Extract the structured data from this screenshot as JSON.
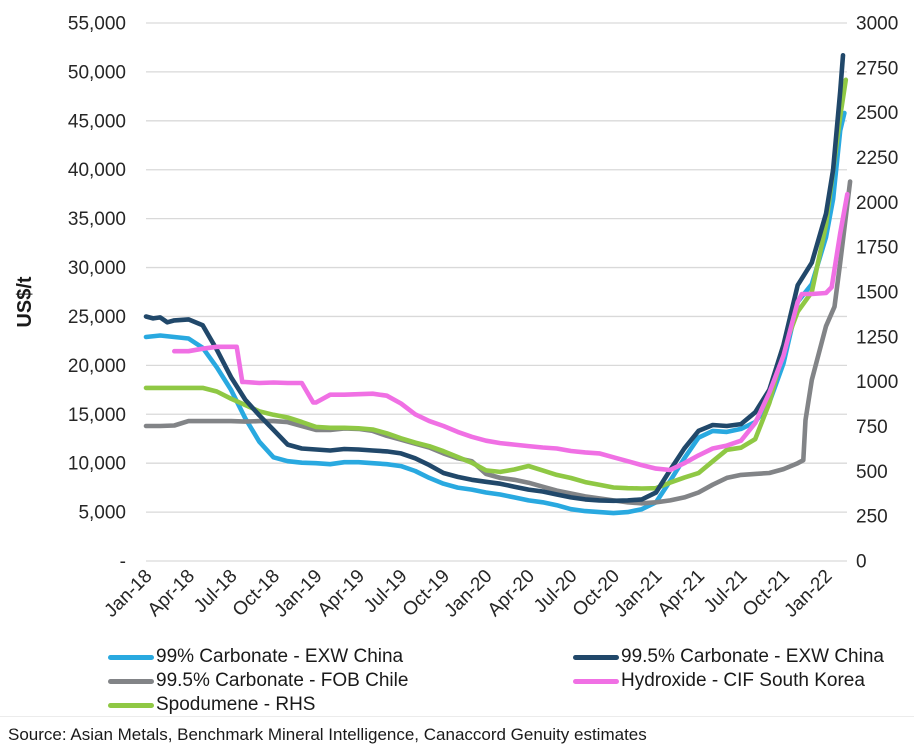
{
  "axis_left": {
    "title": "US$/t",
    "max": 55000,
    "ticks": [
      "55,000",
      "50,000",
      "45,000",
      "40,000",
      "35,000",
      "30,000",
      "25,000",
      "20,000",
      "15,000",
      "10,000",
      "5,000",
      "-"
    ]
  },
  "axis_right": {
    "max": 3000,
    "ticks": [
      "3000",
      "2750",
      "2500",
      "2250",
      "2000",
      "1750",
      "1500",
      "1250",
      "1000",
      "750",
      "500",
      "250",
      "0"
    ]
  },
  "x_axis": {
    "labels": [
      "Jan-18",
      "Apr-18",
      "Jul-18",
      "Oct-18",
      "Jan-19",
      "Apr-19",
      "Jul-19",
      "Oct-19",
      "Jan-20",
      "Apr-20",
      "Jul-20",
      "Oct-20",
      "Jan-21",
      "Apr-21",
      "Jul-21",
      "Oct-21",
      "Jan-22"
    ],
    "months_per_label": 3
  },
  "colors": {
    "carbonate99_exw_china": "#29A9E0",
    "carbonate995_exw_china": "#21486A",
    "carbonate995_fob_chile": "#828487",
    "hydroxide_cif_south_korea": "#F070E4",
    "spodumene_rhs": "#8FC844",
    "gridline": "#d9d9d9"
  },
  "chart_data": {
    "type": "line",
    "x_unit": "months since Jan-2018",
    "left_axis_range": [
      0,
      55000
    ],
    "right_axis_range": [
      0,
      3000
    ],
    "grid": "horizontal",
    "legend_position": "bottom",
    "series": [
      {
        "name": "99% Carbonate - EXW China",
        "axis": "left",
        "color": "#29A9E0",
        "points": [
          [
            0,
            22900
          ],
          [
            1,
            23050
          ],
          [
            2,
            22900
          ],
          [
            3,
            22750
          ],
          [
            4,
            21800
          ],
          [
            5,
            19800
          ],
          [
            6,
            17500
          ],
          [
            7,
            14600
          ],
          [
            8,
            12200
          ],
          [
            9,
            10600
          ],
          [
            10,
            10200
          ],
          [
            11,
            10050
          ],
          [
            12,
            10000
          ],
          [
            13,
            9900
          ],
          [
            14,
            10100
          ],
          [
            15,
            10100
          ],
          [
            16,
            10000
          ],
          [
            17,
            9900
          ],
          [
            18,
            9700
          ],
          [
            19,
            9200
          ],
          [
            20,
            8500
          ],
          [
            21,
            7900
          ],
          [
            22,
            7500
          ],
          [
            23,
            7300
          ],
          [
            24,
            7000
          ],
          [
            25,
            6800
          ],
          [
            26,
            6500
          ],
          [
            27,
            6200
          ],
          [
            28,
            6000
          ],
          [
            29,
            5700
          ],
          [
            30,
            5300
          ],
          [
            31,
            5100
          ],
          [
            32,
            5000
          ],
          [
            33,
            4900
          ],
          [
            34,
            5000
          ],
          [
            35,
            5300
          ],
          [
            36,
            6000
          ],
          [
            37,
            8200
          ],
          [
            38,
            10500
          ],
          [
            39,
            12600
          ],
          [
            40,
            13300
          ],
          [
            41,
            13200
          ],
          [
            42,
            13500
          ],
          [
            43,
            14200
          ],
          [
            44,
            16200
          ],
          [
            45,
            20200
          ],
          [
            46,
            26500
          ],
          [
            47,
            28300
          ],
          [
            48,
            33100
          ],
          [
            48.5,
            37000
          ],
          [
            49,
            44000
          ],
          [
            49.3,
            45800
          ]
        ]
      },
      {
        "name": "99.5% Carbonate - FOB Chile",
        "axis": "left",
        "color": "#828487",
        "points": [
          [
            0,
            13800
          ],
          [
            1,
            13800
          ],
          [
            2,
            13850
          ],
          [
            3,
            14300
          ],
          [
            4,
            14300
          ],
          [
            5,
            14300
          ],
          [
            6,
            14300
          ],
          [
            7,
            14250
          ],
          [
            8,
            14300
          ],
          [
            9,
            14300
          ],
          [
            10,
            14200
          ],
          [
            11,
            13800
          ],
          [
            12,
            13400
          ],
          [
            13,
            13400
          ],
          [
            14,
            13550
          ],
          [
            15,
            13500
          ],
          [
            16,
            13300
          ],
          [
            17,
            12800
          ],
          [
            18,
            12400
          ],
          [
            19,
            12000
          ],
          [
            20,
            11600
          ],
          [
            21,
            11000
          ],
          [
            22,
            10500
          ],
          [
            23,
            10200
          ],
          [
            24,
            8900
          ],
          [
            25,
            8500
          ],
          [
            26,
            8300
          ],
          [
            27,
            8000
          ],
          [
            28,
            7600
          ],
          [
            29,
            7200
          ],
          [
            30,
            6900
          ],
          [
            31,
            6600
          ],
          [
            32,
            6400
          ],
          [
            33,
            6200
          ],
          [
            34,
            6000
          ],
          [
            35,
            5900
          ],
          [
            36,
            6000
          ],
          [
            37,
            6200
          ],
          [
            38,
            6500
          ],
          [
            39,
            7000
          ],
          [
            40,
            7800
          ],
          [
            41,
            8500
          ],
          [
            42,
            8800
          ],
          [
            43,
            8900
          ],
          [
            44,
            9000
          ],
          [
            45,
            9400
          ],
          [
            46,
            10000
          ],
          [
            46.4,
            10300
          ],
          [
            46.55,
            14400
          ],
          [
            47,
            18500
          ],
          [
            48,
            24000
          ],
          [
            48.6,
            26000
          ],
          [
            49,
            30500
          ],
          [
            49.7,
            38800
          ]
        ]
      },
      {
        "name": "Spodumene - RHS",
        "axis": "right",
        "color": "#8FC844",
        "points": [
          [
            0,
            965
          ],
          [
            1,
            965
          ],
          [
            2,
            965
          ],
          [
            3,
            965
          ],
          [
            4,
            965
          ],
          [
            5,
            945
          ],
          [
            6,
            905
          ],
          [
            7,
            870
          ],
          [
            8,
            835
          ],
          [
            9,
            815
          ],
          [
            10,
            800
          ],
          [
            11,
            775
          ],
          [
            12,
            748
          ],
          [
            13,
            743
          ],
          [
            14,
            743
          ],
          [
            15,
            740
          ],
          [
            16,
            733
          ],
          [
            17,
            712
          ],
          [
            18,
            684
          ],
          [
            19,
            660
          ],
          [
            20,
            640
          ],
          [
            21,
            612
          ],
          [
            22,
            580
          ],
          [
            23,
            548
          ],
          [
            24,
            505
          ],
          [
            25,
            497
          ],
          [
            26,
            510
          ],
          [
            27,
            530
          ],
          [
            28,
            505
          ],
          [
            29,
            480
          ],
          [
            30,
            463
          ],
          [
            31,
            440
          ],
          [
            32,
            425
          ],
          [
            33,
            410
          ],
          [
            34,
            406
          ],
          [
            35,
            404
          ],
          [
            36,
            406
          ],
          [
            37,
            437
          ],
          [
            38,
            465
          ],
          [
            39,
            490
          ],
          [
            40,
            556
          ],
          [
            41,
            620
          ],
          [
            42,
            632
          ],
          [
            43,
            680
          ],
          [
            44,
            880
          ],
          [
            45,
            1180
          ],
          [
            46,
            1390
          ],
          [
            47,
            1500
          ],
          [
            48,
            1875
          ],
          [
            49,
            2480
          ],
          [
            49.4,
            2683
          ]
        ]
      },
      {
        "name": "99.5% Carbonate - EXW China",
        "axis": "left",
        "color": "#21486A",
        "points": [
          [
            0,
            25000
          ],
          [
            0.5,
            24800
          ],
          [
            1,
            24900
          ],
          [
            1.5,
            24400
          ],
          [
            2,
            24600
          ],
          [
            3,
            24700
          ],
          [
            4,
            24100
          ],
          [
            5,
            21600
          ],
          [
            6,
            18800
          ],
          [
            7,
            16500
          ],
          [
            8,
            14900
          ],
          [
            9,
            13400
          ],
          [
            10,
            11900
          ],
          [
            11,
            11500
          ],
          [
            12,
            11400
          ],
          [
            13,
            11300
          ],
          [
            14,
            11450
          ],
          [
            15,
            11400
          ],
          [
            16,
            11300
          ],
          [
            17,
            11200
          ],
          [
            18,
            11000
          ],
          [
            19,
            10500
          ],
          [
            20,
            9800
          ],
          [
            21,
            9000
          ],
          [
            22,
            8600
          ],
          [
            23,
            8300
          ],
          [
            24,
            8100
          ],
          [
            25,
            7900
          ],
          [
            26,
            7600
          ],
          [
            27,
            7300
          ],
          [
            28,
            7100
          ],
          [
            29,
            6800
          ],
          [
            30,
            6500
          ],
          [
            31,
            6300
          ],
          [
            32,
            6200
          ],
          [
            33,
            6150
          ],
          [
            34,
            6200
          ],
          [
            35,
            6300
          ],
          [
            36,
            7000
          ],
          [
            37,
            9300
          ],
          [
            38,
            11500
          ],
          [
            39,
            13300
          ],
          [
            40,
            13900
          ],
          [
            41,
            13800
          ],
          [
            42,
            14000
          ],
          [
            43,
            15200
          ],
          [
            44,
            17500
          ],
          [
            45,
            22100
          ],
          [
            46,
            28200
          ],
          [
            47,
            30500
          ],
          [
            48,
            35500
          ],
          [
            48.5,
            40000
          ],
          [
            49,
            48000
          ],
          [
            49.2,
            51700
          ]
        ]
      },
      {
        "name": "Hydroxide - CIF South Korea",
        "axis": "left",
        "color": "#F070E4",
        "points": [
          [
            2,
            21450
          ],
          [
            3,
            21450
          ],
          [
            4,
            21700
          ],
          [
            5,
            21900
          ],
          [
            6,
            21900
          ],
          [
            6.4,
            21900
          ],
          [
            6.8,
            18300
          ],
          [
            7,
            18300
          ],
          [
            8,
            18200
          ],
          [
            9,
            18250
          ],
          [
            10,
            18200
          ],
          [
            11,
            18200
          ],
          [
            11.8,
            16200
          ],
          [
            12,
            16200
          ],
          [
            13,
            17000
          ],
          [
            14,
            17000
          ],
          [
            15,
            17050
          ],
          [
            16,
            17100
          ],
          [
            17,
            16900
          ],
          [
            18,
            16100
          ],
          [
            19,
            15000
          ],
          [
            20,
            14300
          ],
          [
            21,
            13800
          ],
          [
            22,
            13200
          ],
          [
            23,
            12700
          ],
          [
            24,
            12300
          ],
          [
            25,
            12050
          ],
          [
            26,
            11900
          ],
          [
            27,
            11750
          ],
          [
            28,
            11600
          ],
          [
            29,
            11500
          ],
          [
            30,
            11250
          ],
          [
            31,
            11100
          ],
          [
            32,
            11000
          ],
          [
            33,
            10600
          ],
          [
            34,
            10200
          ],
          [
            35,
            9800
          ],
          [
            36,
            9450
          ],
          [
            37,
            9300
          ],
          [
            38,
            10000
          ],
          [
            39,
            10800
          ],
          [
            40,
            11500
          ],
          [
            41,
            11800
          ],
          [
            42,
            12300
          ],
          [
            43,
            14100
          ],
          [
            44,
            17200
          ],
          [
            45,
            21000
          ],
          [
            46,
            26500
          ],
          [
            46.3,
            27300
          ],
          [
            47,
            27300
          ],
          [
            48,
            27400
          ],
          [
            48.4,
            28000
          ],
          [
            49,
            33500
          ],
          [
            49.5,
            37500
          ]
        ]
      }
    ]
  },
  "legend": {
    "items": [
      {
        "label": "99% Carbonate - EXW China",
        "color": "#29A9E0",
        "col": 0,
        "row": 0
      },
      {
        "label": "99.5% Carbonate - EXW China",
        "color": "#21486A",
        "col": 1,
        "row": 0
      },
      {
        "label": "99.5% Carbonate - FOB Chile",
        "color": "#828487",
        "col": 0,
        "row": 1
      },
      {
        "label": "Hydroxide - CIF South Korea",
        "color": "#F070E4",
        "col": 1,
        "row": 1
      },
      {
        "label": "Spodumene - RHS",
        "color": "#8FC844",
        "col": 0,
        "row": 2
      }
    ]
  },
  "source": "Source: Asian Metals, Benchmark Mineral Intelligence, Canaccord Genuity estimates"
}
